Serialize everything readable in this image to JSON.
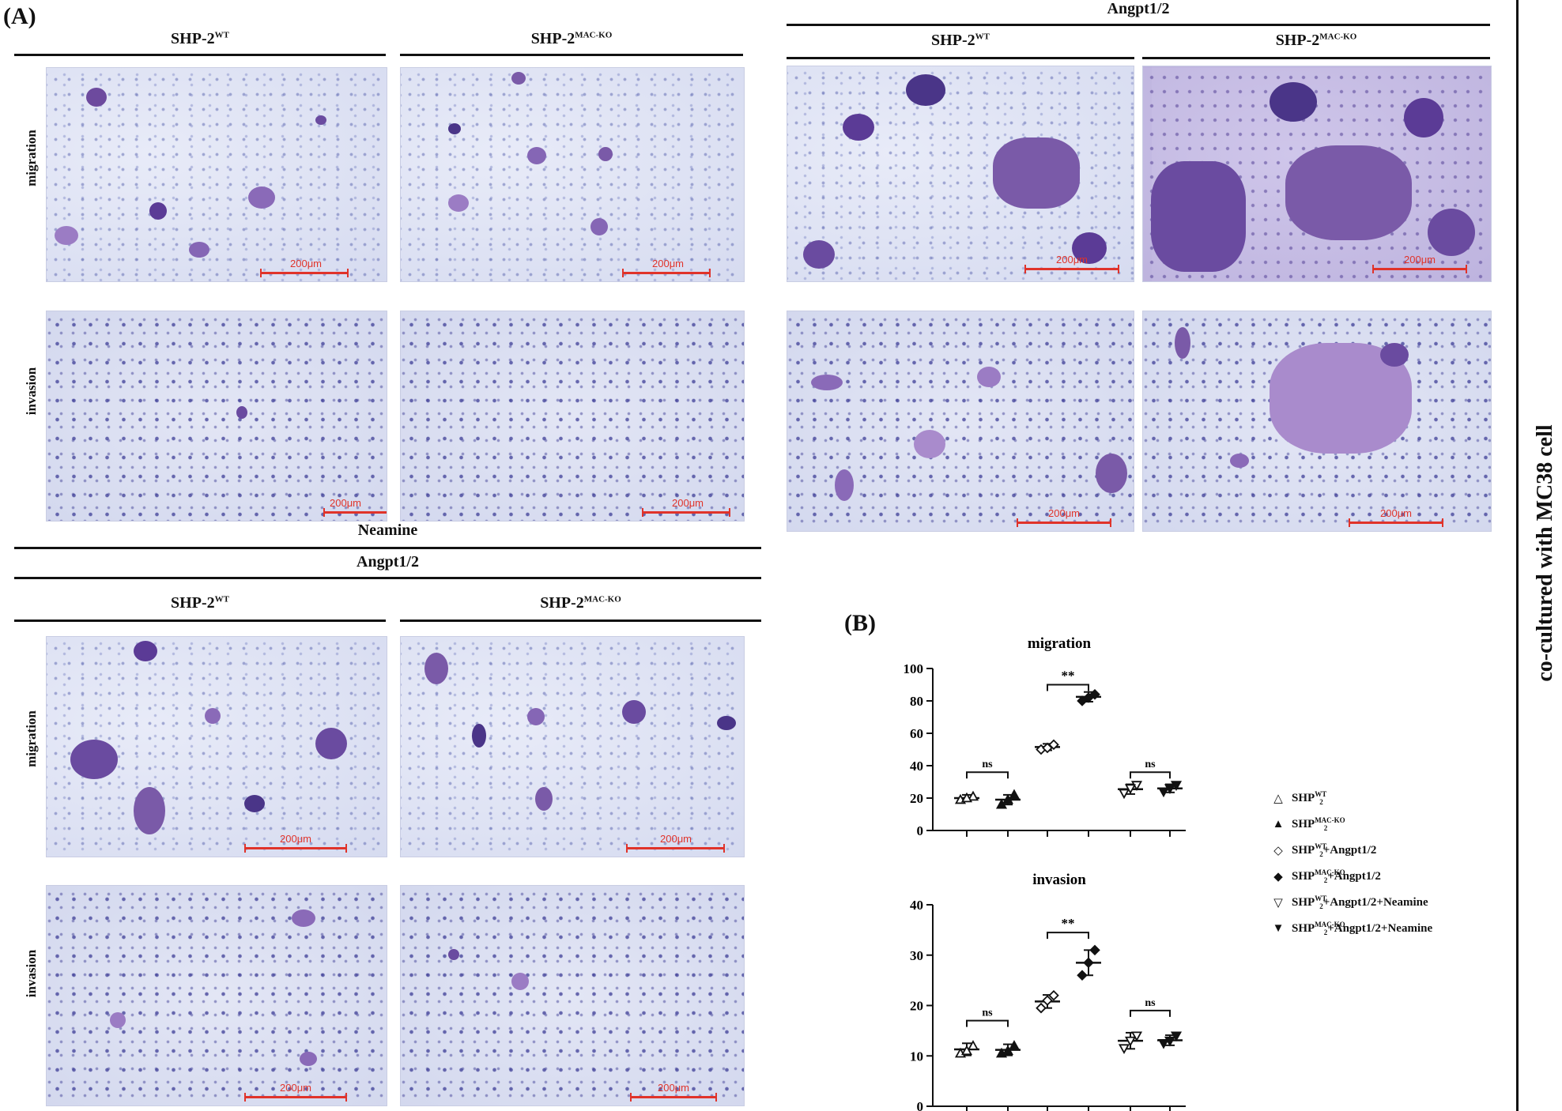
{
  "labels": {
    "panel_a": "(A)",
    "panel_b": "(B)",
    "angpt": "Angpt1/2",
    "neamine": "Neamine",
    "wt_base": "SHP-2",
    "wt_sup": "WT",
    "ko_base": "SHP-2",
    "ko_sup": "MAC-KO",
    "row_migration": "migration",
    "row_invasion": "invasion",
    "scale": "200μm",
    "side_title": "co-cultured with MC38 cell"
  },
  "colors": {
    "stain": "#7a5aa8",
    "stain_dark": "#4a3588",
    "scale_bar": "#e0332a",
    "background": "#dfe3f3"
  },
  "legend": [
    {
      "symbol": "triangle-up-open",
      "base": "SHP",
      "sub": "2",
      "sup": "WT",
      "suffix": ""
    },
    {
      "symbol": "triangle-up-filled",
      "base": "SHP",
      "sub": "2",
      "sup": "MAC-KO",
      "suffix": ""
    },
    {
      "symbol": "diamond-open",
      "base": "SHP",
      "sub": "2",
      "sup": "WT",
      "suffix": "+Angpt1/2"
    },
    {
      "symbol": "diamond-filled",
      "base": "SHP",
      "sub": "2",
      "sup": "MAC-KO",
      "suffix": "+Angpt1/2"
    },
    {
      "symbol": "triangle-down-open",
      "base": "SHP",
      "sub": "2",
      "sup": "WT",
      "suffix": "+Angpt1/2+Neamine"
    },
    {
      "symbol": "triangle-down-filled",
      "base": "SHP",
      "sub": "2",
      "sup": "MAC-KO",
      "suffix": "+Angpt1/2+Neamine"
    }
  ],
  "chart_data": [
    {
      "type": "scatter",
      "title": "migration",
      "ylim": [
        0,
        100
      ],
      "yticks": [
        0,
        20,
        40,
        60,
        80,
        100
      ],
      "groups": [
        {
          "name": "SHP2 WT",
          "marker": "triangle-up-open",
          "points": [
            19,
            21,
            20
          ],
          "mean": 20,
          "sd": 2
        },
        {
          "name": "SHP2 MAC-KO",
          "marker": "triangle-up-filled",
          "points": [
            16,
            22,
            19
          ],
          "mean": 19,
          "sd": 3
        },
        {
          "name": "SHP2 WT+Angpt1/2",
          "marker": "diamond-open",
          "points": [
            50,
            53,
            51
          ],
          "mean": 51.5,
          "sd": 2
        },
        {
          "name": "SHP2 MAC-KO+Angpt1/2",
          "marker": "diamond-filled",
          "points": [
            80,
            84,
            82
          ],
          "mean": 82.5,
          "sd": 3
        },
        {
          "name": "SHP2 WT+Angpt1/2+Neamine",
          "marker": "triangle-down-open",
          "points": [
            23,
            28,
            26
          ],
          "mean": 25.5,
          "sd": 3
        },
        {
          "name": "SHP2 MAC-KO+Angpt1/2+Neamine",
          "marker": "triangle-down-filled",
          "points": [
            24,
            28,
            26
          ],
          "mean": 26,
          "sd": 2.5
        }
      ],
      "annotations": [
        {
          "label": "ns",
          "from": 0,
          "to": 1,
          "y": 36
        },
        {
          "label": "**",
          "from": 2,
          "to": 3,
          "y": 90
        },
        {
          "label": "ns",
          "from": 4,
          "to": 5,
          "y": 36
        }
      ]
    },
    {
      "type": "scatter",
      "title": "invasion",
      "ylim": [
        0,
        40
      ],
      "yticks": [
        0,
        10,
        20,
        30,
        40
      ],
      "groups": [
        {
          "name": "SHP2 WT",
          "marker": "triangle-up-open",
          "points": [
            10.5,
            12,
            11
          ],
          "mean": 11.3,
          "sd": 1.2
        },
        {
          "name": "SHP2 MAC-KO",
          "marker": "triangle-up-filled",
          "points": [
            10.5,
            12,
            11
          ],
          "mean": 11.2,
          "sd": 1.1
        },
        {
          "name": "SHP2 WT+Angpt1/2",
          "marker": "diamond-open",
          "points": [
            19.5,
            22,
            21
          ],
          "mean": 20.8,
          "sd": 1.3
        },
        {
          "name": "SHP2 MAC-KO+Angpt1/2",
          "marker": "diamond-filled",
          "points": [
            26,
            31,
            28.5
          ],
          "mean": 28.5,
          "sd": 2.5
        },
        {
          "name": "SHP2 WT+Angpt1/2+Neamine",
          "marker": "triangle-down-open",
          "points": [
            11.5,
            14,
            13
          ],
          "mean": 13,
          "sd": 1.6
        },
        {
          "name": "SHP2 MAC-KO+Angpt1/2+Neamine",
          "marker": "triangle-down-filled",
          "points": [
            12.5,
            14,
            13
          ],
          "mean": 13.1,
          "sd": 1.0
        }
      ],
      "annotations": [
        {
          "label": "ns",
          "from": 0,
          "to": 1,
          "y": 17
        },
        {
          "label": "**",
          "from": 2,
          "to": 3,
          "y": 34.5
        },
        {
          "label": "ns",
          "from": 4,
          "to": 5,
          "y": 19
        }
      ]
    }
  ]
}
